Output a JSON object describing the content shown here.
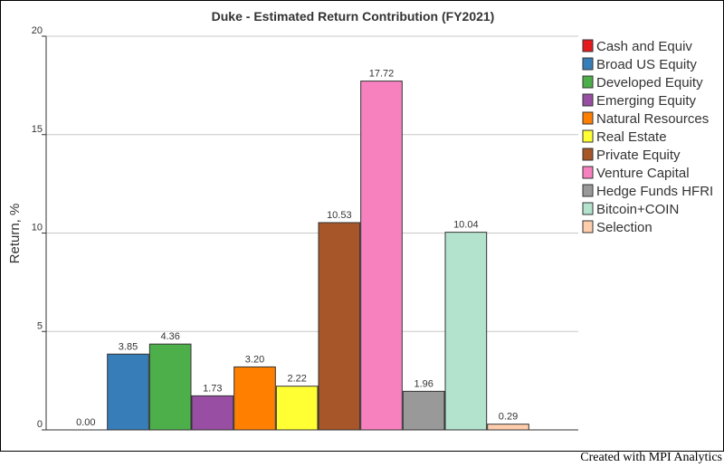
{
  "footer": {
    "credit": "Created with MPI Analytics"
  },
  "chart_data": {
    "type": "bar",
    "title": "Duke - Estimated Return Contribution (FY2021)",
    "xlabel": "",
    "ylabel": "Return, %",
    "ylim": [
      0,
      20
    ],
    "yticks": [
      0,
      5,
      10,
      15,
      20
    ],
    "grid": true,
    "legend_position": "right",
    "categories": [
      "Cash and Equiv",
      "Broad US Equity",
      "Developed Equity",
      "Emerging Equity",
      "Natural Resources",
      "Real Estate",
      "Private Equity",
      "Venture Capital",
      "Hedge Funds HFRI",
      "Bitcoin+COIN",
      "Selection"
    ],
    "values": [
      0.0,
      3.85,
      4.36,
      1.73,
      3.2,
      2.22,
      10.53,
      17.72,
      1.96,
      10.04,
      0.29
    ],
    "value_labels": [
      "0.00",
      "3.85",
      "4.36",
      "1.73",
      "3.20",
      "2.22",
      "10.53",
      "17.72",
      "1.96",
      "10.04",
      "0.29"
    ],
    "colors": [
      "#e41a1c",
      "#377eb8",
      "#4daf4a",
      "#984ea3",
      "#ff7f00",
      "#ffff33",
      "#a65628",
      "#f781bf",
      "#999999",
      "#b3e2cd",
      "#fdcdac"
    ]
  }
}
